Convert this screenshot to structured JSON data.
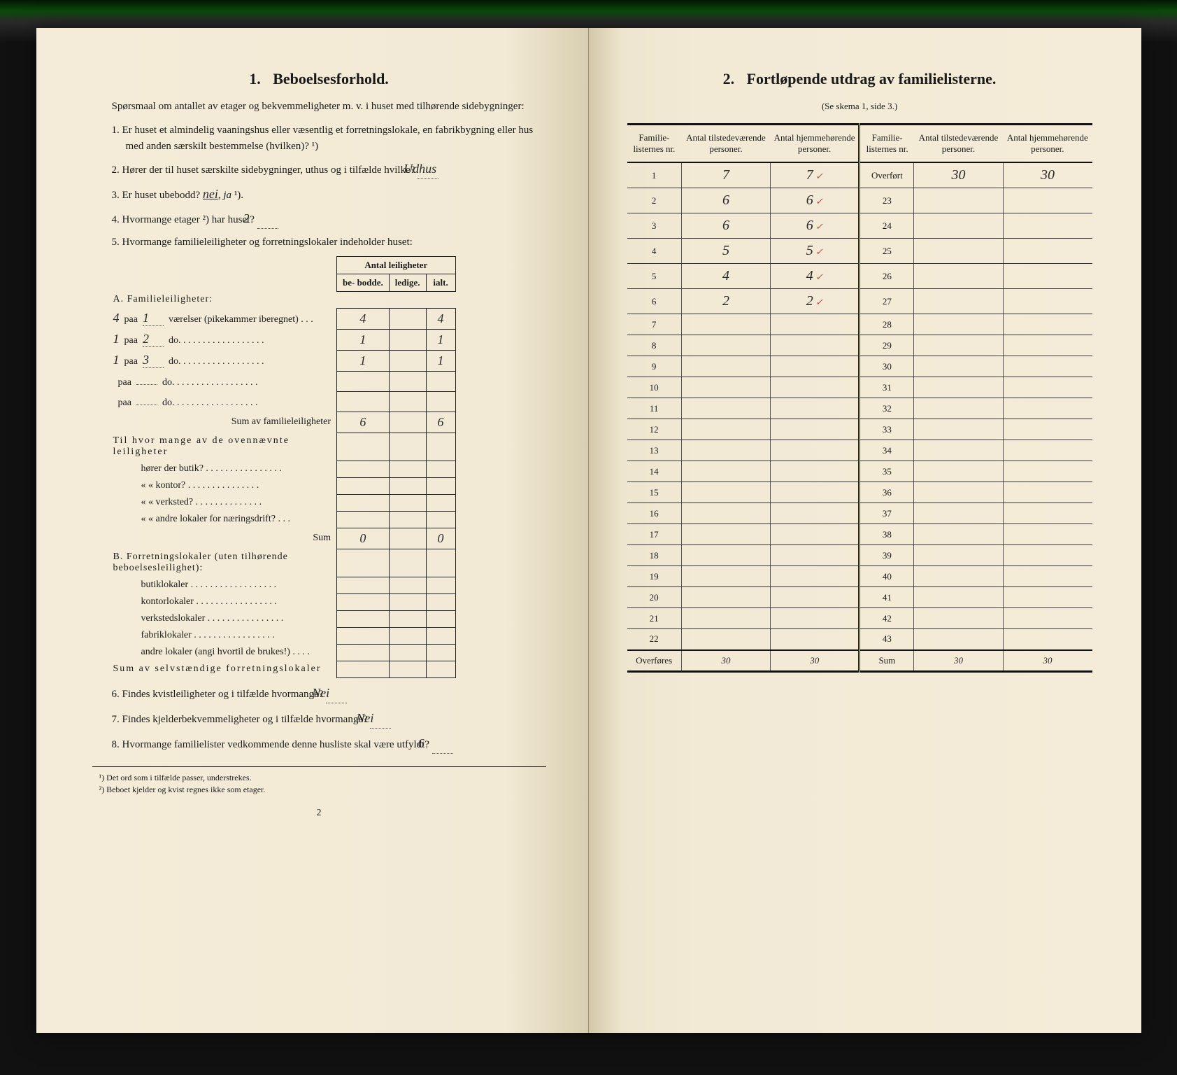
{
  "left": {
    "section_num": "1.",
    "section_title": "Beboelsesforhold.",
    "intro": "Spørsmaal om antallet av etager og bekvemmeligheter m. v. i huset med tilhørende sidebygninger:",
    "q1": "Er huset et almindelig vaaningshus eller væsentlig et forretningslokale, en fabrikbygning eller hus med anden særskilt bestemmelse (hvilken)? ¹)",
    "q2_pre": "Hører der til huset særskilte sidebygninger, uthus og i tilfælde hvilke?",
    "q2_ans": "Udhus",
    "q3": "Er huset ubebodd?  nei,  ja ¹).",
    "q3_underlined": "nei",
    "q4_pre": "Hvormange etager ²) har huset?",
    "q4_ans": "2",
    "q5": "Hvormange familieleiligheter og forretningslokaler indeholder huset:",
    "tbl_head": "Antal leiligheter",
    "tbl_cols": [
      "be-\nbodde.",
      "ledige.",
      "ialt."
    ],
    "secA": "A. Familieleiligheter:",
    "rowsA": [
      {
        "n": "4",
        "r": "1",
        "label": "værelser (pikekammer iberegnet) . . .",
        "b": "4",
        "l": "",
        "i": "4"
      },
      {
        "n": "1",
        "r": "2",
        "label": "do.   . . . . . . . . . . . . . . . . .",
        "b": "1",
        "l": "",
        "i": "1"
      },
      {
        "n": "1",
        "r": "3",
        "label": "do.   . . . . . . . . . . . . . . . . .",
        "b": "1",
        "l": "",
        "i": "1"
      },
      {
        "n": "",
        "r": "",
        "label": "do.   . . . . . . . . . . . . . . . . .",
        "b": "",
        "l": "",
        "i": ""
      },
      {
        "n": "",
        "r": "",
        "label": "do.   . . . . . . . . . . . . . . . . .",
        "b": "",
        "l": "",
        "i": ""
      }
    ],
    "sumA_label": "Sum av familieleiligheter",
    "sumA": {
      "b": "6",
      "l": "",
      "i": "6"
    },
    "tilhvor": "Til hvor mange av de ovennævnte leiligheter",
    "tilrows": [
      "hører der butik? . . . . . . . . . . . . . . . .",
      "«     «   kontor? . . . . . . . . . . . . . . .",
      "«     «   verksted? . . . . . . . . . . . . . .",
      "«     «   andre lokaler for næringsdrift? . . ."
    ],
    "sum_label": "Sum",
    "sum_til": {
      "b": "0",
      "l": "",
      "i": "0"
    },
    "secB": "B. Forretningslokaler (uten tilhørende beboelsesleilighet):",
    "rowsB": [
      "butiklokaler . . . . . . . . . . . . . . . . . .",
      "kontorlokaler . . . . . . . . . . . . . . . . .",
      "verkstedslokaler . . . . . . . . . . . . . . . .",
      "fabriklokaler . . . . . . . . . . . . . . . . .",
      "andre lokaler (angi hvortil de brukes!) . . . ."
    ],
    "sumB_label": "Sum av selvstændige forretningslokaler",
    "q6_pre": "Findes kvistleiligheter og i tilfælde hvormange?",
    "q6_ans": "Nei",
    "q7_pre": "Findes kjelderbekvemmeligheter og i tilfælde hvormange?",
    "q7_ans": "Nei",
    "q8_pre": "Hvormange familielister vedkommende denne husliste skal være utfyldt?",
    "q8_ans": "6",
    "foot1": "¹) Det ord som i tilfælde passer, understrekes.",
    "foot2": "²) Beboet kjelder og kvist regnes ikke som etager.",
    "pagenum": "2"
  },
  "right": {
    "section_num": "2.",
    "section_title": "Fortløpende utdrag av familielisterne.",
    "subtitle": "(Se skema 1, side 3.)",
    "headers": [
      "Familie-\nlisternes\nnr.",
      "Antal\ntilstedeværende\npersoner.",
      "Antal\nhjemmehørende\npersoner.",
      "Familie-\nlisternes\nnr.",
      "Antal\ntilstedeværende\npersoner.",
      "Antal\nhjemmehørende\npersoner."
    ],
    "rows": [
      {
        "l": "1",
        "t": "7",
        "h": "7",
        "c": "✓",
        "r": "Overført",
        "rt": "30",
        "rh": "30"
      },
      {
        "l": "2",
        "t": "6",
        "h": "6",
        "c": "✓",
        "r": "23",
        "rt": "",
        "rh": ""
      },
      {
        "l": "3",
        "t": "6",
        "h": "6",
        "c": "✓",
        "r": "24",
        "rt": "",
        "rh": ""
      },
      {
        "l": "4",
        "t": "5",
        "h": "5",
        "c": "✓",
        "r": "25",
        "rt": "",
        "rh": ""
      },
      {
        "l": "5",
        "t": "4",
        "h": "4",
        "c": "✓",
        "r": "26",
        "rt": "",
        "rh": ""
      },
      {
        "l": "6",
        "t": "2",
        "h": "2",
        "c": "✓",
        "r": "27",
        "rt": "",
        "rh": ""
      },
      {
        "l": "7",
        "t": "",
        "h": "",
        "c": "",
        "r": "28",
        "rt": "",
        "rh": ""
      },
      {
        "l": "8",
        "t": "",
        "h": "",
        "c": "",
        "r": "29",
        "rt": "",
        "rh": ""
      },
      {
        "l": "9",
        "t": "",
        "h": "",
        "c": "",
        "r": "30",
        "rt": "",
        "rh": ""
      },
      {
        "l": "10",
        "t": "",
        "h": "",
        "c": "",
        "r": "31",
        "rt": "",
        "rh": ""
      },
      {
        "l": "11",
        "t": "",
        "h": "",
        "c": "",
        "r": "32",
        "rt": "",
        "rh": ""
      },
      {
        "l": "12",
        "t": "",
        "h": "",
        "c": "",
        "r": "33",
        "rt": "",
        "rh": ""
      },
      {
        "l": "13",
        "t": "",
        "h": "",
        "c": "",
        "r": "34",
        "rt": "",
        "rh": ""
      },
      {
        "l": "14",
        "t": "",
        "h": "",
        "c": "",
        "r": "35",
        "rt": "",
        "rh": ""
      },
      {
        "l": "15",
        "t": "",
        "h": "",
        "c": "",
        "r": "36",
        "rt": "",
        "rh": ""
      },
      {
        "l": "16",
        "t": "",
        "h": "",
        "c": "",
        "r": "37",
        "rt": "",
        "rh": ""
      },
      {
        "l": "17",
        "t": "",
        "h": "",
        "c": "",
        "r": "38",
        "rt": "",
        "rh": ""
      },
      {
        "l": "18",
        "t": "",
        "h": "",
        "c": "",
        "r": "39",
        "rt": "",
        "rh": ""
      },
      {
        "l": "19",
        "t": "",
        "h": "",
        "c": "",
        "r": "40",
        "rt": "",
        "rh": ""
      },
      {
        "l": "20",
        "t": "",
        "h": "",
        "c": "",
        "r": "41",
        "rt": "",
        "rh": ""
      },
      {
        "l": "21",
        "t": "",
        "h": "",
        "c": "",
        "r": "42",
        "rt": "",
        "rh": ""
      },
      {
        "l": "22",
        "t": "",
        "h": "",
        "c": "",
        "r": "43",
        "rt": "",
        "rh": ""
      }
    ],
    "sum": {
      "l": "Overføres",
      "t": "30",
      "h": "30",
      "r": "Sum",
      "rt": "30",
      "rh": "30"
    }
  }
}
